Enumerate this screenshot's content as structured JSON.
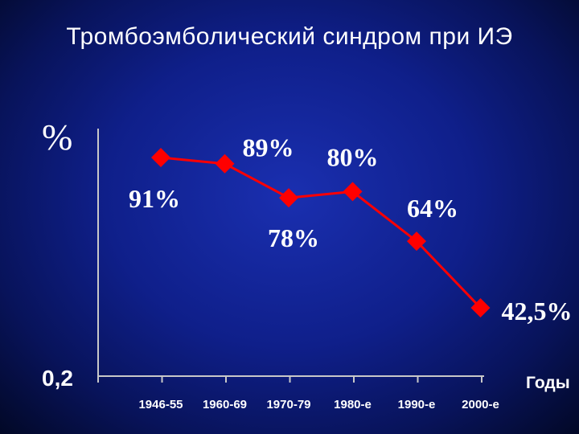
{
  "slide": {
    "title": "Тромбоэмболический синдром при ИЭ"
  },
  "chart_data": {
    "type": "line",
    "title": "",
    "ylabel": "%",
    "xlabel": "Годы",
    "y_min_label": "0,2",
    "categories": [
      "1946-55",
      "1960-69",
      "1970-79",
      "1980-е",
      "1990-е",
      "2000-е"
    ],
    "series": [
      {
        "values": [
          91,
          89,
          78,
          80,
          64,
          42.5
        ],
        "labels": [
          "91%",
          "89%",
          "78%",
          "80%",
          "64%",
          "42,5%"
        ],
        "color": "#ff0000"
      }
    ],
    "ylim": [
      20,
      100
    ],
    "grid": false,
    "legend": "none",
    "colors": {
      "axis": "#c8c8c8",
      "line": "#ff0000",
      "text": "#ffffff"
    }
  }
}
